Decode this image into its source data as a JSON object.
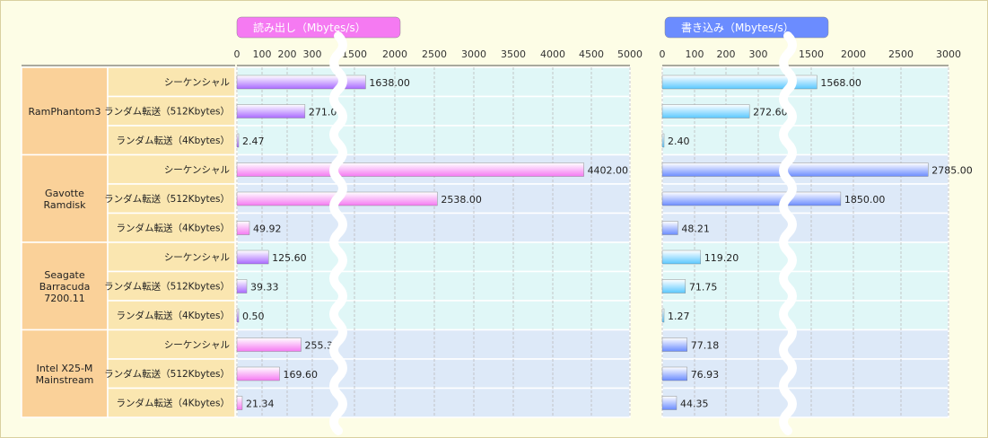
{
  "chart_data": [
    {
      "type": "bar",
      "title": "読み出し（Mbytes/s）",
      "color": "#f57af2",
      "color_dark": "#a96aff",
      "ticks": [
        0,
        100,
        200,
        300,
        1500,
        2000,
        2500,
        3000,
        3500,
        4000,
        4500,
        5000
      ],
      "axis_break": [
        300,
        1500
      ],
      "values": [
        1638.0,
        271.0,
        2.47,
        4402.0,
        2538.0,
        49.92,
        125.6,
        39.33,
        0.5,
        255.3,
        169.6,
        21.34
      ],
      "labels": [
        "1638.00",
        "271.00",
        "2.47",
        "4402.00",
        "2538.00",
        "49.92",
        "125.60",
        "39.33",
        "0.50",
        "255.30",
        "169.60",
        "21.34"
      ]
    },
    {
      "type": "bar",
      "title": "書き込み（Mbytes/s）",
      "color": "#6b8cff",
      "color_dark": "#5ac8ff",
      "ticks": [
        0,
        100,
        200,
        300,
        1500,
        2000,
        2500,
        3000
      ],
      "axis_break": [
        300,
        1500
      ],
      "values": [
        1568.0,
        272.6,
        2.4,
        2785.0,
        1850.0,
        48.21,
        119.2,
        71.75,
        1.27,
        77.18,
        76.93,
        44.35
      ],
      "labels": [
        "1568.00",
        "272.60",
        "2.40",
        "2785.00",
        "1850.00",
        "48.21",
        "119.20",
        "71.75",
        "1.27",
        "77.18",
        "76.93",
        "44.35"
      ]
    }
  ],
  "products": [
    {
      "name": [
        "RamPhantom3"
      ]
    },
    {
      "name": [
        "Gavotte",
        "Ramdisk"
      ]
    },
    {
      "name": [
        "Seagate",
        "Barracuda",
        "7200.11"
      ]
    },
    {
      "name": [
        "Intel X25-M",
        "Mainstream"
      ]
    }
  ],
  "tests": [
    "シーケンシャル",
    "ランダム転送（512Kbytes）",
    "ランダム転送（4Kbytes）"
  ],
  "colors": {
    "product_bg": "#fad199",
    "test_bg": "#fae6b0",
    "row_a": "#e0f7f7",
    "row_b": "#dde9f8",
    "title_read": "#f57af2",
    "title_write": "#6b8cff"
  }
}
